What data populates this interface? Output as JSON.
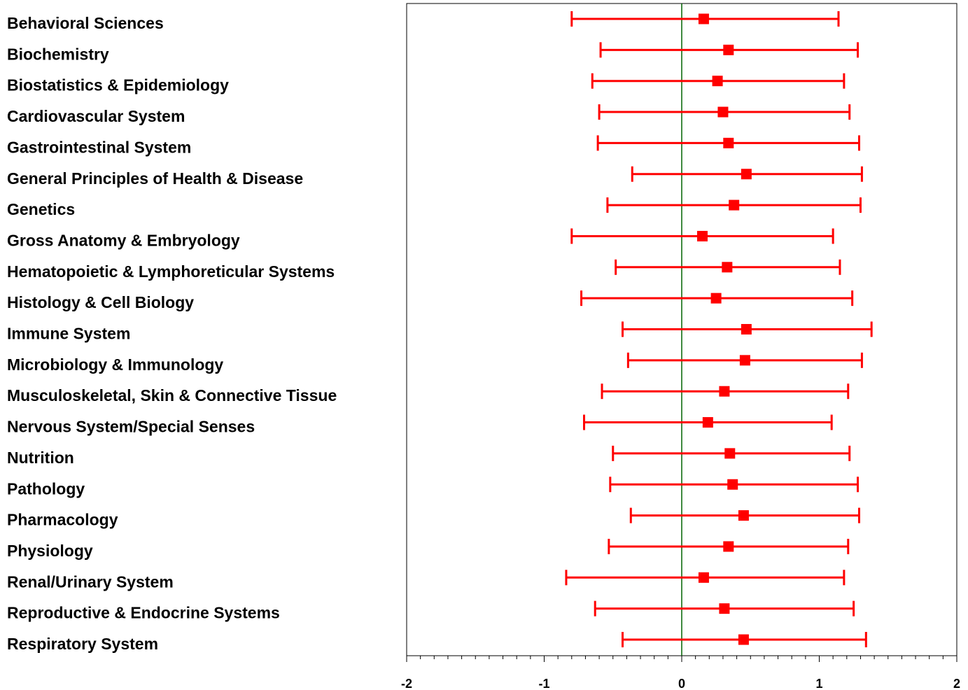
{
  "chart_data": {
    "type": "forest",
    "title": "",
    "xlabel": "",
    "ylabel": "",
    "xlim": [
      -2,
      2
    ],
    "x_ticks": [
      "-2",
      "-1",
      "0",
      "1",
      "2"
    ],
    "reference_line_x": 0,
    "grid": false,
    "colors": {
      "series": "#ff0000",
      "reference": "#006400",
      "axis": "#000000"
    },
    "rows": [
      {
        "label": "Behavioral Sciences",
        "estimate": 0.16,
        "lower": -0.8,
        "upper": 1.14
      },
      {
        "label": "Biochemistry",
        "estimate": 0.34,
        "lower": -0.59,
        "upper": 1.28
      },
      {
        "label": "Biostatistics & Epidemiology",
        "estimate": 0.26,
        "lower": -0.65,
        "upper": 1.18
      },
      {
        "label": "Cardiovascular System",
        "estimate": 0.3,
        "lower": -0.6,
        "upper": 1.22
      },
      {
        "label": "Gastrointestinal System",
        "estimate": 0.34,
        "lower": -0.61,
        "upper": 1.29
      },
      {
        "label": "General Principles of Health & Disease",
        "estimate": 0.47,
        "lower": -0.36,
        "upper": 1.31
      },
      {
        "label": "Genetics",
        "estimate": 0.38,
        "lower": -0.54,
        "upper": 1.3
      },
      {
        "label": "Gross Anatomy & Embryology",
        "estimate": 0.15,
        "lower": -0.8,
        "upper": 1.1
      },
      {
        "label": "Hematopoietic & Lymphoreticular Systems",
        "estimate": 0.33,
        "lower": -0.48,
        "upper": 1.15
      },
      {
        "label": "Histology & Cell Biology",
        "estimate": 0.25,
        "lower": -0.73,
        "upper": 1.24
      },
      {
        "label": "Immune System",
        "estimate": 0.47,
        "lower": -0.43,
        "upper": 1.38
      },
      {
        "label": "Microbiology & Immunology",
        "estimate": 0.46,
        "lower": -0.39,
        "upper": 1.31
      },
      {
        "label": "Musculoskeletal, Skin & Connective Tissue",
        "estimate": 0.31,
        "lower": -0.58,
        "upper": 1.21
      },
      {
        "label": "Nervous System/Special Senses",
        "estimate": 0.19,
        "lower": -0.71,
        "upper": 1.09
      },
      {
        "label": "Nutrition",
        "estimate": 0.35,
        "lower": -0.5,
        "upper": 1.22
      },
      {
        "label": "Pathology",
        "estimate": 0.37,
        "lower": -0.52,
        "upper": 1.28
      },
      {
        "label": "Pharmacology",
        "estimate": 0.45,
        "lower": -0.37,
        "upper": 1.29
      },
      {
        "label": "Physiology",
        "estimate": 0.34,
        "lower": -0.53,
        "upper": 1.21
      },
      {
        "label": "Renal/Urinary System",
        "estimate": 0.16,
        "lower": -0.84,
        "upper": 1.18
      },
      {
        "label": "Reproductive & Endocrine Systems",
        "estimate": 0.31,
        "lower": -0.63,
        "upper": 1.25
      },
      {
        "label": "Respiratory System",
        "estimate": 0.45,
        "lower": -0.43,
        "upper": 1.34
      }
    ]
  }
}
